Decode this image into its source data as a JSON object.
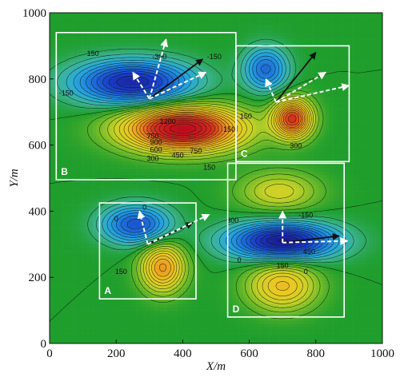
{
  "chart_data": {
    "type": "heatmap",
    "xlabel": "X/m",
    "ylabel": "Y/m",
    "xlim": [
      0,
      1000
    ],
    "ylim": [
      0,
      1000
    ],
    "xticks": [
      0,
      200,
      400,
      600,
      800,
      1000
    ],
    "yticks": [
      0,
      200,
      400,
      600,
      800,
      1000
    ],
    "background_color": "#1f9e2c",
    "anomalies": [
      {
        "x": 400,
        "y": 650,
        "peak": 1350,
        "sx": 120,
        "sy": 45
      },
      {
        "x": 250,
        "y": 790,
        "peak": -900,
        "sx": 120,
        "sy": 45
      },
      {
        "x": 730,
        "y": 680,
        "peak": 1000,
        "sx": 40,
        "sy": 40
      },
      {
        "x": 650,
        "y": 830,
        "peak": -550,
        "sx": 45,
        "sy": 45
      },
      {
        "x": 340,
        "y": 230,
        "peak": 700,
        "sx": 45,
        "sy": 50
      },
      {
        "x": 260,
        "y": 360,
        "peak": -650,
        "sx": 70,
        "sy": 40
      },
      {
        "x": 700,
        "y": 310,
        "peak": -1000,
        "sx": 110,
        "sy": 38
      },
      {
        "x": 700,
        "y": 175,
        "peak": 550,
        "sx": 70,
        "sy": 50
      },
      {
        "x": 690,
        "y": 460,
        "peak": 350,
        "sx": 80,
        "sy": 40
      }
    ],
    "regions": [
      {
        "label": "A",
        "x0": 150,
        "x1": 440,
        "y0": 135,
        "y1": 425
      },
      {
        "label": "B",
        "x0": 20,
        "x1": 560,
        "y0": 495,
        "y1": 940
      },
      {
        "label": "C",
        "x0": 560,
        "x1": 900,
        "y0": 550,
        "y1": 900
      },
      {
        "label": "D",
        "x0": 535,
        "x1": 885,
        "y0": 80,
        "y1": 545
      }
    ],
    "contour_labels": [
      {
        "text": "150",
        "x": 130,
        "y": 870
      },
      {
        "text": "-150",
        "x": 495,
        "y": 860
      },
      {
        "text": "-300",
        "x": 330,
        "y": 860
      },
      {
        "text": "150",
        "x": 540,
        "y": 640
      },
      {
        "text": "-150",
        "x": 50,
        "y": 750
      },
      {
        "text": "750",
        "x": 310,
        "y": 620
      },
      {
        "text": "900",
        "x": 320,
        "y": 602
      },
      {
        "text": "600",
        "x": 320,
        "y": 578
      },
      {
        "text": "750",
        "x": 440,
        "y": 575
      },
      {
        "text": "450",
        "x": 385,
        "y": 562
      },
      {
        "text": "300",
        "x": 310,
        "y": 552
      },
      {
        "text": "1200",
        "x": 355,
        "y": 664
      },
      {
        "text": "150",
        "x": 480,
        "y": 525
      },
      {
        "text": "300",
        "x": 740,
        "y": 590
      },
      {
        "text": "150",
        "x": 590,
        "y": 680
      },
      {
        "text": "300",
        "x": 550,
        "y": 365
      },
      {
        "text": "-150",
        "x": 770,
        "y": 380
      },
      {
        "text": "450",
        "x": 780,
        "y": 270
      },
      {
        "text": "150",
        "x": 700,
        "y": 228
      },
      {
        "text": "0",
        "x": 770,
        "y": 210
      },
      {
        "text": "0",
        "x": 570,
        "y": 245
      },
      {
        "text": "150",
        "x": 215,
        "y": 210
      },
      {
        "text": "0",
        "x": 285,
        "y": 405
      },
      {
        "text": "0",
        "x": 200,
        "y": 370
      }
    ],
    "arrows": [
      {
        "from": [
          300,
          740
        ],
        "to": [
          250,
          820
        ],
        "style": "dashed"
      },
      {
        "from": [
          300,
          740
        ],
        "to": [
          350,
          920
        ],
        "style": "dashed"
      },
      {
        "from": [
          300,
          740
        ],
        "to": [
          460,
          860
        ],
        "style": "solid"
      },
      {
        "from": [
          300,
          740
        ],
        "to": [
          470,
          820
        ],
        "style": "dashed"
      },
      {
        "from": [
          680,
          730
        ],
        "to": [
          650,
          800
        ],
        "style": "dashed"
      },
      {
        "from": [
          680,
          730
        ],
        "to": [
          800,
          880
        ],
        "style": "solid"
      },
      {
        "from": [
          680,
          730
        ],
        "to": [
          830,
          820
        ],
        "style": "dashed"
      },
      {
        "from": [
          680,
          730
        ],
        "to": [
          900,
          780
        ],
        "style": "dashed"
      },
      {
        "from": [
          295,
          300
        ],
        "to": [
          270,
          400
        ],
        "style": "dashed"
      },
      {
        "from": [
          295,
          300
        ],
        "to": [
          430,
          365
        ],
        "style": "solid"
      },
      {
        "from": [
          295,
          300
        ],
        "to": [
          480,
          390
        ],
        "style": "dashed"
      },
      {
        "from": [
          700,
          305
        ],
        "to": [
          700,
          400
        ],
        "style": "dashed"
      },
      {
        "from": [
          700,
          305
        ],
        "to": [
          870,
          325
        ],
        "style": "solid"
      },
      {
        "from": [
          700,
          305
        ],
        "to": [
          895,
          310
        ],
        "style": "dashed"
      }
    ]
  }
}
